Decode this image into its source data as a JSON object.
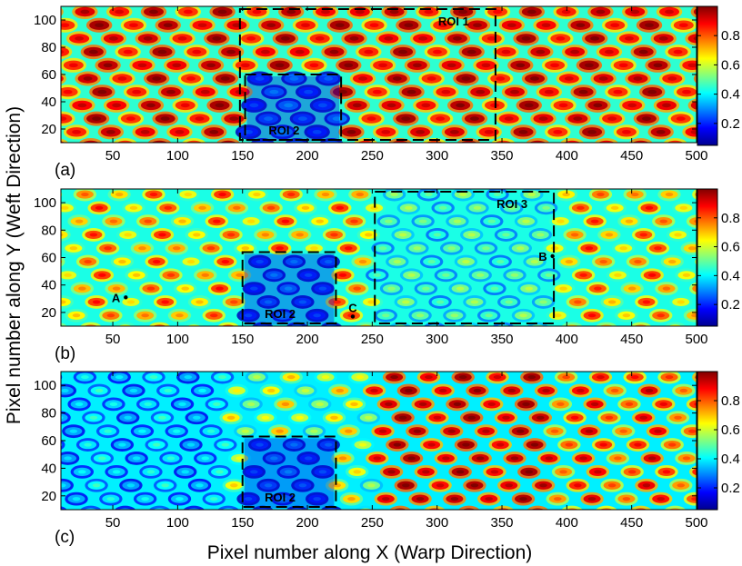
{
  "figure": {
    "xlabel": "Pixel number along X (Warp Direction)",
    "ylabel": "Pixel number along Y (Weft Direction)"
  },
  "colormap": {
    "name": "jet",
    "stops": [
      "#00008f",
      "#0000ff",
      "#0080ff",
      "#00ffff",
      "#80ff80",
      "#ffff00",
      "#ff8000",
      "#ff0000",
      "#800000"
    ]
  },
  "chart_data": [
    {
      "type": "heatmap",
      "panel_label": "(a)",
      "xlim": [
        10,
        500
      ],
      "ylim": [
        10,
        110
      ],
      "xticks": [
        50,
        100,
        150,
        200,
        250,
        300,
        350,
        400,
        450,
        500
      ],
      "yticks": [
        20,
        40,
        60,
        80,
        100
      ],
      "colorbar": {
        "range": [
          0.05,
          1.0
        ],
        "ticks": [
          0.2,
          0.4,
          0.6,
          0.8
        ]
      },
      "rois": [
        {
          "label": "ROI 1",
          "x": [
            148,
            345
          ],
          "y": [
            12,
            108
          ]
        },
        {
          "label": "ROI 2",
          "x": [
            152,
            226
          ],
          "y": [
            12,
            60
          ]
        }
      ],
      "points": []
    },
    {
      "type": "heatmap",
      "panel_label": "(b)",
      "xlim": [
        10,
        500
      ],
      "ylim": [
        10,
        110
      ],
      "xticks": [
        50,
        100,
        150,
        200,
        250,
        300,
        350,
        400,
        450,
        500
      ],
      "yticks": [
        20,
        40,
        60,
        80,
        100
      ],
      "colorbar": {
        "range": [
          0.05,
          1.0
        ],
        "ticks": [
          0.2,
          0.4,
          0.6,
          0.8
        ]
      },
      "rois": [
        {
          "label": "ROI 2",
          "x": [
            150,
            222
          ],
          "y": [
            12,
            64
          ]
        },
        {
          "label": "ROI 3",
          "x": [
            252,
            390
          ],
          "y": [
            12,
            108
          ]
        }
      ],
      "points": [
        {
          "label": "A",
          "x": 60,
          "y": 31
        },
        {
          "label": "B",
          "x": 389,
          "y": 61
        },
        {
          "label": "C",
          "x": 235,
          "y": 17
        }
      ]
    },
    {
      "type": "heatmap",
      "panel_label": "(c)",
      "xlim": [
        10,
        500
      ],
      "ylim": [
        10,
        110
      ],
      "xticks": [
        50,
        100,
        150,
        200,
        250,
        300,
        350,
        400,
        450,
        500
      ],
      "yticks": [
        20,
        40,
        60,
        80,
        100
      ],
      "colorbar": {
        "range": [
          0.05,
          1.0
        ],
        "ticks": [
          0.2,
          0.4,
          0.6,
          0.8
        ]
      },
      "rois": [
        {
          "label": "ROI 2",
          "x": [
            150,
            222
          ],
          "y": [
            12,
            63
          ]
        }
      ],
      "points": []
    }
  ]
}
